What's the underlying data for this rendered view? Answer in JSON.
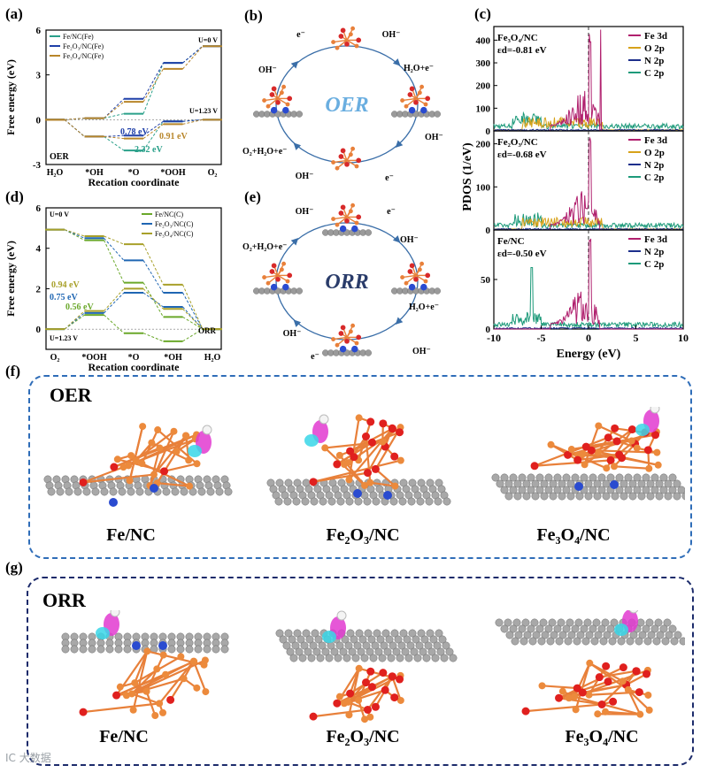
{
  "panels": {
    "a": "(a)",
    "b": "(b)",
    "c": "(c)",
    "d": "(d)",
    "e": "(e)",
    "f": "(f)",
    "g": "(g)"
  },
  "chart_data": [
    {
      "id": "a",
      "type": "line",
      "xlabel": "Recation coordinate",
      "ylabel": "Free energy (eV)",
      "categories": [
        "H2O",
        "*OH",
        "*O",
        "*OOH",
        "O2"
      ],
      "ylim": [
        -3,
        6
      ],
      "yticks": [
        -3,
        0,
        3,
        6
      ],
      "legend": [
        "Fe/NC(Fe)",
        "Fe2O3/NC(Fe)",
        "Fe3O4/NC(Fe)"
      ],
      "series": [
        {
          "name": "Fe/NC(Fe)",
          "color": "#2aa08a",
          "u0": [
            0,
            0.1,
            0.4,
            3.8,
            4.92
          ],
          "u123": [
            0,
            -1.13,
            -2.06,
            -0.11,
            0
          ]
        },
        {
          "name": "Fe2O3/NC(Fe)",
          "color": "#1f3fa8",
          "u0": [
            0,
            0.1,
            1.4,
            3.8,
            4.92
          ],
          "u123": [
            0,
            -1.13,
            -1.06,
            -0.11,
            0
          ]
        },
        {
          "name": "Fe3O4/NC(Fe)",
          "color": "#b8862a",
          "u0": [
            0,
            0.1,
            1.2,
            3.4,
            4.92
          ],
          "u123": [
            0,
            -1.13,
            -1.26,
            -0.3,
            0
          ]
        }
      ],
      "annotations": [
        "U=0 V",
        "U=1.23 V",
        "0.78 eV",
        "0.91 eV",
        "2.32 eV",
        "OER"
      ],
      "annotation_colors": [
        "#000000",
        "#000000",
        "#1f3fa8",
        "#b8862a",
        "#2aa08a",
        "#000000"
      ]
    },
    {
      "id": "d",
      "type": "line",
      "xlabel": "Recation coordinate",
      "ylabel": "Free energy (eV)",
      "categories": [
        "O2",
        "*OOH",
        "*O",
        "*OH",
        "H2O"
      ],
      "ylim": [
        -1,
        6
      ],
      "yticks": [
        0,
        2,
        4,
        6
      ],
      "legend": [
        "Fe/NC(C)",
        "Fe2O3/NC(C)",
        "Fe3O4/NC(C)"
      ],
      "series": [
        {
          "name": "Fe/NC(C)",
          "color": "#6aa82a",
          "u0": [
            4.92,
            4.4,
            2.3,
            0.6,
            0
          ],
          "u123": [
            0,
            0.7,
            -0.2,
            -0.6,
            0
          ]
        },
        {
          "name": "Fe2O3/NC(C)",
          "color": "#1f66b3",
          "u0": [
            4.92,
            4.5,
            3.4,
            1.8,
            0
          ],
          "u123": [
            0,
            0.8,
            1.8,
            1.1,
            0
          ]
        },
        {
          "name": "Fe3O4/NC(C)",
          "color": "#a8a02a",
          "u0": [
            4.92,
            4.6,
            4.2,
            2.2,
            0
          ],
          "u123": [
            0,
            0.9,
            2.0,
            1.0,
            0
          ]
        }
      ],
      "annotations": [
        "U=0 V",
        "U=1.23 V",
        "0.94 eV",
        "0.75 eV",
        "0.56 eV",
        "ORR"
      ],
      "annotation_colors": [
        "#000000",
        "#000000",
        "#a8a02a",
        "#1f66b3",
        "#6aa82a",
        "#000000"
      ]
    },
    {
      "id": "c",
      "type": "line",
      "xlabel": "Energy (eV)",
      "ylabel": "PDOS (1/eV)",
      "xlim": [
        -10,
        10
      ],
      "xticks": [
        -10,
        -5,
        0,
        5,
        10
      ],
      "subplots": [
        {
          "title": "Fe3O4/NC",
          "ed": "εd=-0.81 eV",
          "ylim": [
            0,
            460
          ],
          "yticks": [
            0,
            100,
            200,
            300,
            400
          ],
          "legend": [
            "Fe 3d",
            "O 2p",
            "N 2p",
            "C 2p"
          ]
        },
        {
          "title": "Fe2O3/NC",
          "ed": "εd=-0.68 eV",
          "ylim": [
            0,
            230
          ],
          "yticks": [
            0,
            100,
            200
          ],
          "legend": [
            "Fe 3d",
            "O 2p",
            "N 2p",
            "C 2p"
          ]
        },
        {
          "title": "Fe/NC",
          "ed": "εd=-0.50 eV",
          "ylim": [
            0,
            100
          ],
          "yticks": [
            0,
            50
          ],
          "legend": [
            "Fe 3d",
            "N 2p",
            "C 2p"
          ]
        }
      ],
      "colors": {
        "Fe 3d": "#b0206e",
        "O 2p": "#d7a21a",
        "N 2p": "#1d2f8c",
        "C 2p": "#1d9a7a"
      }
    }
  ],
  "diagram_b": {
    "center": "OER",
    "labels": [
      "e⁻",
      "OH⁻",
      "OH⁻",
      "H₂O+e⁻",
      "O₂+H₂O+e⁻",
      "OH⁻",
      "OH⁻",
      "e⁻"
    ]
  },
  "diagram_e": {
    "center": "ORR",
    "labels": [
      "OH⁻",
      "e⁻",
      "O₂+H₂O+e⁻",
      "OH⁻",
      "OH⁻",
      "H₂O+e⁻",
      "e⁻",
      "OH⁻"
    ]
  },
  "box_f": {
    "title": "OER",
    "labels": [
      "Fe/NC",
      "Fe2O3/NC",
      "Fe3O4/NC"
    ]
  },
  "box_g": {
    "title": "ORR",
    "labels": [
      "Fe/NC",
      "Fe2O3/NC",
      "Fe3O4/NC"
    ]
  },
  "watermark": "IC 大数据"
}
